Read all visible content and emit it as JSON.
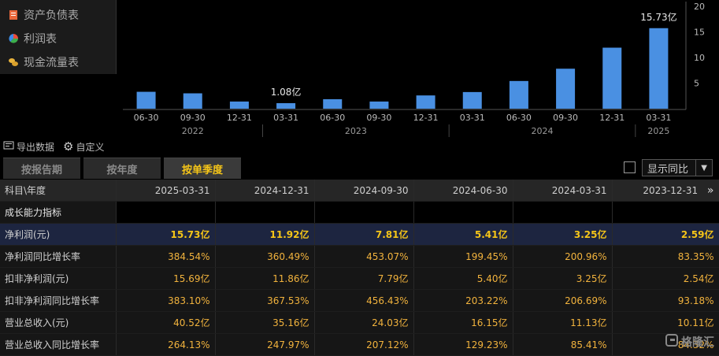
{
  "nav": {
    "items": [
      {
        "label": "资产负债表",
        "icon": "balance-sheet-icon"
      },
      {
        "label": "利润表",
        "icon": "pie-chart-icon"
      },
      {
        "label": "现金流量表",
        "icon": "coins-icon"
      }
    ]
  },
  "chart_data": {
    "type": "bar",
    "categories": [
      "06-30",
      "09-30",
      "12-31",
      "03-31",
      "06-30",
      "09-30",
      "12-31",
      "03-31",
      "06-30",
      "09-30",
      "12-31",
      "03-31"
    ],
    "years": [
      {
        "label": "2022",
        "from": 0,
        "to": 2
      },
      {
        "label": "2023",
        "from": 3,
        "to": 6
      },
      {
        "label": "2024",
        "from": 7,
        "to": 10
      },
      {
        "label": "2025",
        "from": 11,
        "to": 11
      }
    ],
    "values": [
      3.3,
      3.0,
      1.4,
      1.08,
      1.85,
      1.4,
      2.59,
      3.25,
      5.41,
      7.81,
      11.92,
      15.73
    ],
    "ylim": [
      0,
      20
    ],
    "yticks": [
      5,
      10,
      15,
      20
    ],
    "annotations": [
      {
        "index": 3,
        "text": "1.08亿"
      },
      {
        "index": 11,
        "text": "15.73亿"
      }
    ],
    "bar_color": "#4a90e2"
  },
  "toolbar": {
    "export_label": "导出数据",
    "custom_label": "自定义"
  },
  "tabs": {
    "items": [
      "按报告期",
      "按年度",
      "按单季度"
    ],
    "active": 2,
    "yoy_label": "显示同比"
  },
  "table": {
    "header_label": "科目\\年度",
    "columns": [
      "2025-03-31",
      "2024-12-31",
      "2024-09-30",
      "2024-06-30",
      "2024-03-31",
      "2023-12-31"
    ],
    "more_icon": "»",
    "rows": [
      {
        "label": "成长能力指标",
        "values": [
          "",
          "",
          "",
          "",
          "",
          ""
        ],
        "section": true
      },
      {
        "label": "净利润(元)",
        "values": [
          "15.73亿",
          "11.92亿",
          "7.81亿",
          "5.41亿",
          "3.25亿",
          "2.59亿"
        ],
        "highlight": true
      },
      {
        "label": "净利润同比增长率",
        "values": [
          "384.54%",
          "360.49%",
          "453.07%",
          "199.45%",
          "200.96%",
          "83.35%"
        ]
      },
      {
        "label": "扣非净利润(元)",
        "values": [
          "15.69亿",
          "11.86亿",
          "7.79亿",
          "5.40亿",
          "3.25亿",
          "2.54亿"
        ]
      },
      {
        "label": "扣非净利润同比增长率",
        "values": [
          "383.10%",
          "367.53%",
          "456.43%",
          "203.22%",
          "206.69%",
          "93.18%"
        ]
      },
      {
        "label": "营业总收入(元)",
        "values": [
          "40.52亿",
          "35.16亿",
          "24.03亿",
          "16.15亿",
          "11.13亿",
          "10.11亿"
        ]
      },
      {
        "label": "营业总收入同比增长率",
        "values": [
          "264.13%",
          "247.97%",
          "207.12%",
          "129.23%",
          "85.41%",
          "84.32%"
        ]
      }
    ]
  },
  "watermark": "格隆汇"
}
